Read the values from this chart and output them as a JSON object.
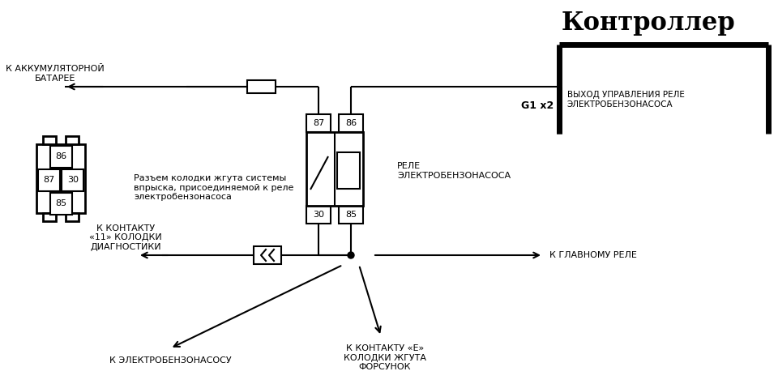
{
  "title": "Контроллер",
  "bg_color": "#ffffff",
  "line_color": "#000000",
  "relay_label": "РЕЛЕ\nЭЛЕКТРОБЕНЗОНАСОСА",
  "connector_label": "Разъем колодки жгута системы\nвпрыска, присоединяемой к реле\nэлектробензонасоса",
  "label_battery": "К АККУМУЛЯТОРНОЙ\nБАТАРЕЕ",
  "label_controller_out": "ВЫХОД УПРАВЛЕНИЯ РЕЛЕ\nЭЛЕКТРОБЕНЗОНАСОСА",
  "label_g1x2": "G1 x2",
  "label_contact11": "К КОНТАКТУ\n«11» КОЛОДКИ\nДИАГНОСТИКИ",
  "label_main_relay": "К ГЛАВНОМУ РЕЛЕ",
  "label_pump": "К ЭЛЕКТРОБЕНЗОНАСОСУ",
  "label_injector": "К КОНТАКТУ «Е»\nКОЛОДКИ ЖГУТА\nФОРСУНОК",
  "pins": [
    "87",
    "86",
    "30",
    "85"
  ]
}
